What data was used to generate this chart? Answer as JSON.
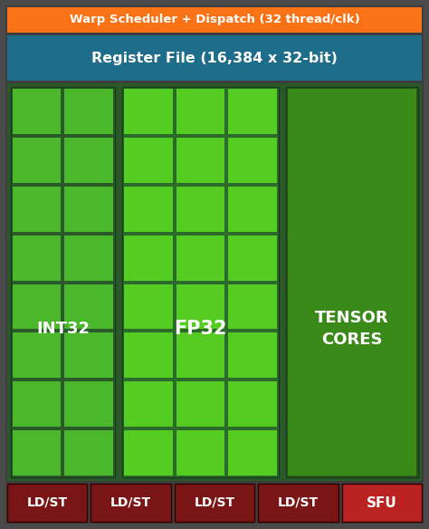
{
  "bg_color": "#4a4a4a",
  "outer_bg": "#3d3d3d",
  "warp_bar_color": "#f97316",
  "warp_text": "Warp Scheduler + Dispatch (32 thread/clk)",
  "warp_text_color": "#ffffff",
  "register_bar_color": "#1e6d8a",
  "register_text": "Register File (16,384 x 32-bit)",
  "register_text_color": "#ffffff",
  "main_area_color": "#2a5a2a",
  "int32_bg": "#2a5a2a",
  "int32_cell": "#4ab82a",
  "fp32_bg": "#2a6a2a",
  "fp32_cell": "#55cc22",
  "tensor_bg": "#2a5a1a",
  "tensor_cell": "#3a8a1a",
  "grid_line_color": "#1a4a1a",
  "gap_color": "#3d3d3d",
  "ldst_color": "#7a1515",
  "sfu_color": "#bb2222",
  "bottom_text_color": "#ffffff",
  "int32_label": "INT32",
  "fp32_label": "FP32",
  "tensor_label": "TENSOR\nCORES",
  "ldst_label": "LD/ST",
  "sfu_label": "SFU",
  "fig_w": 4.74,
  "fig_h": 5.84,
  "dpi": 100
}
